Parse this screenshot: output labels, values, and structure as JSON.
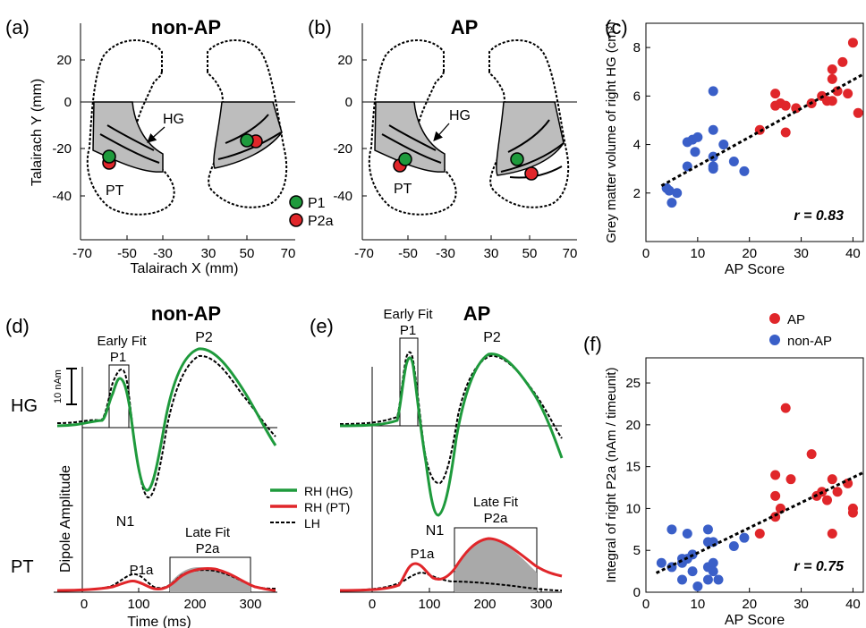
{
  "panels": {
    "a": {
      "letter": "(a)",
      "title": "non-AP"
    },
    "b": {
      "letter": "(b)",
      "title": "AP"
    },
    "c": {
      "letter": "(c)"
    },
    "d": {
      "letter": "(d)",
      "title": "non-AP"
    },
    "e": {
      "letter": "(e)",
      "title": "AP"
    },
    "f": {
      "letter": "(f)"
    }
  },
  "brain": {
    "ylabel": "Talairach Y (mm)",
    "xlabel": "Talairach X (mm)",
    "yticks": [
      "20",
      "0",
      "-20",
      "-40"
    ],
    "xticks": [
      "-70",
      "-50",
      "-30",
      "30",
      "50",
      "70"
    ],
    "label_hg": "HG",
    "label_pt": "PT",
    "legend": [
      {
        "name": "P1",
        "color": "#1e9a3c"
      },
      {
        "name": "P2a",
        "color": "#e0262a"
      }
    ]
  },
  "waves": {
    "hg_label": "HG",
    "pt_label": "PT",
    "scale_label": "10 nAm",
    "dipole_label": "Dipole Amplitude",
    "xlabel": "Time (ms)",
    "xticks": [
      "0",
      "100",
      "200",
      "300"
    ],
    "early_fit": "Early Fit",
    "late_fit": "Late Fit",
    "p1": "P1",
    "p2": "P2",
    "n1": "N1",
    "p1a": "P1a",
    "p2a": "P2a",
    "legend": [
      {
        "name": "RH (HG)",
        "color": "#1e9a3c"
      },
      {
        "name": "RH (PT)",
        "color": "#e0262a"
      },
      {
        "name": "LH",
        "color": "#000000"
      }
    ]
  },
  "chart_data": [
    {
      "panel": "c",
      "type": "scatter",
      "xlabel": "AP Score",
      "ylabel": "Grey matter volume of right HG (cm³)",
      "xlim": [
        0,
        42
      ],
      "ylim": [
        0,
        9
      ],
      "xticks": [
        0,
        10,
        20,
        30,
        40
      ],
      "yticks": [
        2,
        4,
        6,
        8
      ],
      "annotation": "r = 0.83",
      "series": [
        {
          "color": "#3a5fc8",
          "points": [
            [
              4,
              2.2
            ],
            [
              4.5,
              2.1
            ],
            [
              5,
              1.6
            ],
            [
              6,
              2.0
            ],
            [
              8,
              3.1
            ],
            [
              8,
              4.1
            ],
            [
              9,
              4.2
            ],
            [
              9.5,
              3.7
            ],
            [
              10,
              4.3
            ],
            [
              13,
              6.2
            ],
            [
              13,
              4.6
            ],
            [
              13,
              3.5
            ],
            [
              13,
              3.1
            ],
            [
              13,
              3.0
            ],
            [
              15,
              4.0
            ],
            [
              17,
              3.3
            ],
            [
              19,
              2.9
            ]
          ]
        },
        {
          "color": "#e0262a",
          "points": [
            [
              22,
              4.6
            ],
            [
              25,
              6.1
            ],
            [
              25,
              5.6
            ],
            [
              26,
              5.7
            ],
            [
              27,
              4.5
            ],
            [
              27,
              5.6
            ],
            [
              29,
              5.5
            ],
            [
              32,
              5.7
            ],
            [
              34,
              6.0
            ],
            [
              35,
              5.8
            ],
            [
              36,
              7.1
            ],
            [
              36,
              6.7
            ],
            [
              36,
              5.8
            ],
            [
              37,
              6.2
            ],
            [
              38,
              7.4
            ],
            [
              39,
              6.1
            ],
            [
              40,
              8.2
            ],
            [
              41,
              5.3
            ]
          ]
        }
      ],
      "fit": [
        [
          3,
          2.3
        ],
        [
          42,
          6.9
        ]
      ]
    },
    {
      "panel": "f",
      "type": "scatter",
      "xlabel": "AP Score",
      "ylabel": "Integral of right P2a (nAm / timeunit)",
      "xlim": [
        0,
        42
      ],
      "ylim": [
        0,
        28
      ],
      "xticks": [
        0,
        10,
        20,
        30,
        40
      ],
      "yticks": [
        0,
        5,
        10,
        15,
        20,
        25
      ],
      "annotation": "r = 0.75",
      "legend": [
        {
          "name": "AP",
          "color": "#e0262a"
        },
        {
          "name": "non-AP",
          "color": "#3a5fc8"
        }
      ],
      "series": [
        {
          "name": "non-AP",
          "color": "#3a5fc8",
          "points": [
            [
              3,
              3.5
            ],
            [
              5,
              7.5
            ],
            [
              5,
              3
            ],
            [
              7,
              4
            ],
            [
              7,
              3.5
            ],
            [
              7,
              1.5
            ],
            [
              8,
              7
            ],
            [
              8,
              4
            ],
            [
              9,
              4.5
            ],
            [
              9,
              2.5
            ],
            [
              10,
              0.7
            ],
            [
              12,
              7.5
            ],
            [
              12,
              6
            ],
            [
              12,
              3
            ],
            [
              12,
              1.5
            ],
            [
              13,
              6
            ],
            [
              13,
              3.5
            ],
            [
              13,
              2.5
            ],
            [
              14,
              1.5
            ],
            [
              17,
              5.5
            ],
            [
              19,
              6.5
            ]
          ]
        },
        {
          "name": "AP",
          "color": "#e0262a",
          "points": [
            [
              22,
              7
            ],
            [
              25,
              14
            ],
            [
              25,
              11.5
            ],
            [
              25,
              9
            ],
            [
              26,
              10
            ],
            [
              27,
              22
            ],
            [
              28,
              13.5
            ],
            [
              32,
              16.5
            ],
            [
              33,
              11.5
            ],
            [
              34,
              12
            ],
            [
              35,
              11
            ],
            [
              36,
              13.5
            ],
            [
              36,
              7
            ],
            [
              37,
              12
            ],
            [
              39,
              13
            ],
            [
              40,
              10
            ],
            [
              40,
              9.5
            ]
          ]
        }
      ],
      "fit": [
        [
          2,
          2.3
        ],
        [
          42,
          14.3
        ]
      ]
    }
  ]
}
